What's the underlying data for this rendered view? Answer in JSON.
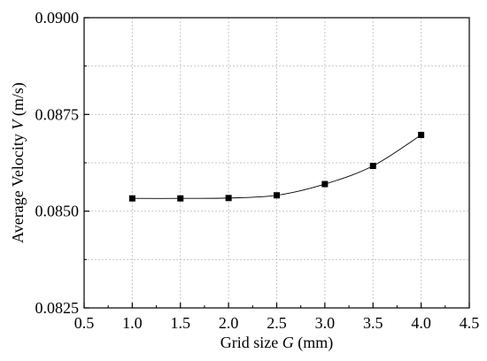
{
  "chart_data": {
    "type": "scatter",
    "x": [
      1.0,
      1.5,
      2.0,
      2.5,
      3.0,
      3.5,
      4.0
    ],
    "series": [
      {
        "values": [
          0.08533,
          0.08533,
          0.08534,
          0.08541,
          0.0857,
          0.08617,
          0.08697
        ],
        "marker": "square",
        "smooth_line": true
      }
    ],
    "xlabel": {
      "prefix": "Grid size ",
      "var": "G",
      "suffix": " (mm)"
    },
    "ylabel": {
      "prefix": "Average Velocity ",
      "var": "V",
      "suffix": " (m/s)"
    },
    "xlim": [
      0.5,
      4.5
    ],
    "ylim": [
      0.0825,
      0.09
    ],
    "xticks": [
      "0.5",
      "1.0",
      "1.5",
      "2.0",
      "2.5",
      "3.0",
      "3.5",
      "4.0",
      "4.5"
    ],
    "yticks": [
      "0.0825",
      "0.0850",
      "0.0875",
      "0.0900"
    ],
    "grid": true,
    "colors": {
      "marker": "#000000",
      "line": "#000000",
      "grid": "#c8c8c8"
    }
  }
}
